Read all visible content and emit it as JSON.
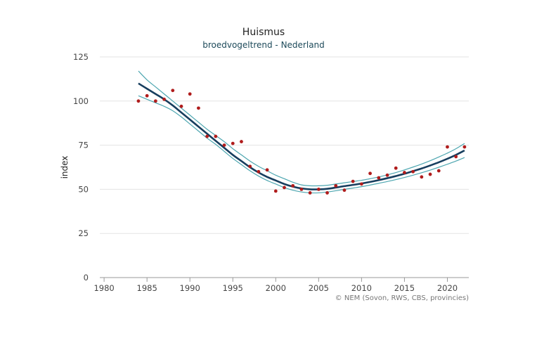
{
  "colors": {
    "trend": "#173e5e",
    "band": "#4da6b0",
    "points": "#b01c1c",
    "grid": "#e3e3e3",
    "axis": "#999999"
  },
  "chart_data": {
    "type": "line",
    "title": "Huismus",
    "subtitle": "broedvogeltrend - Nederland",
    "xlabel": "",
    "ylabel": "index",
    "xlim": [
      1979,
      1980,
      2022.5
    ],
    "xlim_note": "",
    "x_range": [
      1979.5,
      2022.5
    ],
    "ylim": [
      0,
      125
    ],
    "x_ticks": [
      1980,
      1985,
      1990,
      1995,
      2000,
      2005,
      2010,
      2015,
      2020
    ],
    "y_ticks": [
      0,
      25,
      50,
      75,
      100,
      125
    ],
    "grid": true,
    "credit": "© NEM (Sovon, RWS, CBS, provincies)",
    "series": [
      {
        "name": "trend",
        "style": "line",
        "x": [
          1984,
          1985,
          1986,
          1987,
          1988,
          1989,
          1990,
          1991,
          1992,
          1993,
          1994,
          1995,
          1996,
          1997,
          1998,
          1999,
          2000,
          2001,
          2002,
          2003,
          2004,
          2005,
          2006,
          2007,
          2008,
          2009,
          2010,
          2011,
          2012,
          2013,
          2014,
          2015,
          2016,
          2017,
          2018,
          2019,
          2020,
          2021,
          2022
        ],
        "values": [
          110,
          107,
          104,
          101,
          97.5,
          93.5,
          89.5,
          85.5,
          81.5,
          77.5,
          73.5,
          69.5,
          66,
          62.5,
          59.5,
          57,
          55,
          53,
          51.5,
          50.5,
          50,
          50,
          50.3,
          51,
          51.8,
          52.5,
          53.3,
          54.2,
          55.2,
          56.3,
          57.5,
          58.8,
          60.3,
          61.8,
          63.5,
          65.3,
          67.3,
          69.5,
          72
        ]
      },
      {
        "name": "upper",
        "style": "band",
        "x": [
          1984,
          1985,
          1986,
          1987,
          1988,
          1989,
          1990,
          1991,
          1992,
          1993,
          1994,
          1995,
          1996,
          1997,
          1998,
          1999,
          2000,
          2001,
          2002,
          2003,
          2004,
          2005,
          2006,
          2007,
          2008,
          2009,
          2010,
          2011,
          2012,
          2013,
          2014,
          2015,
          2016,
          2017,
          2018,
          2019,
          2020,
          2021,
          2022
        ],
        "values": [
          117,
          112,
          108,
          104,
          100,
          96,
          92,
          88,
          84,
          80.5,
          77,
          73,
          69.5,
          66,
          63,
          60.5,
          58,
          56,
          54,
          52.5,
          52,
          52,
          52.3,
          53,
          53.7,
          54.4,
          55.1,
          56,
          57,
          58.2,
          59.5,
          61,
          62.6,
          64.3,
          66.2,
          68.3,
          70.5,
          73,
          76
        ]
      },
      {
        "name": "lower",
        "style": "band",
        "x": [
          1984,
          1985,
          1986,
          1987,
          1988,
          1989,
          1990,
          1991,
          1992,
          1993,
          1994,
          1995,
          1996,
          1997,
          1998,
          1999,
          2000,
          2001,
          2002,
          2003,
          2004,
          2005,
          2006,
          2007,
          2008,
          2009,
          2010,
          2011,
          2012,
          2013,
          2014,
          2015,
          2016,
          2017,
          2018,
          2019,
          2020,
          2021,
          2022
        ],
        "values": [
          103,
          101,
          99,
          97,
          94.5,
          91,
          87,
          83,
          79,
          75.5,
          71.5,
          67.5,
          64,
          60.5,
          57.5,
          55,
          53,
          51,
          49.5,
          48.5,
          48,
          48,
          48.5,
          49.2,
          50,
          50.7,
          51.5,
          52.4,
          53.4,
          54.4,
          55.5,
          56.7,
          58,
          59.4,
          60.9,
          62.5,
          64.2,
          66,
          68
        ]
      },
      {
        "name": "index",
        "style": "points",
        "x": [
          1984,
          1985,
          1986,
          1987,
          1988,
          1989,
          1990,
          1991,
          1992,
          1993,
          1994,
          1995,
          1996,
          1997,
          1998,
          1999,
          2000,
          2001,
          2002,
          2003,
          2004,
          2005,
          2006,
          2007,
          2008,
          2009,
          2010,
          2011,
          2012,
          2013,
          2014,
          2015,
          2016,
          2017,
          2018,
          2019,
          2020,
          2021,
          2022
        ],
        "values": [
          100,
          103,
          100,
          101,
          106,
          97,
          104,
          96,
          80,
          80,
          75,
          76,
          77,
          63,
          60,
          61,
          49,
          51,
          52,
          50,
          48,
          50,
          48,
          52,
          49.5,
          54.5,
          53,
          59,
          56.5,
          58,
          62,
          59.5,
          60,
          57,
          58.5,
          60.5,
          74,
          68.5,
          74
        ]
      }
    ]
  }
}
